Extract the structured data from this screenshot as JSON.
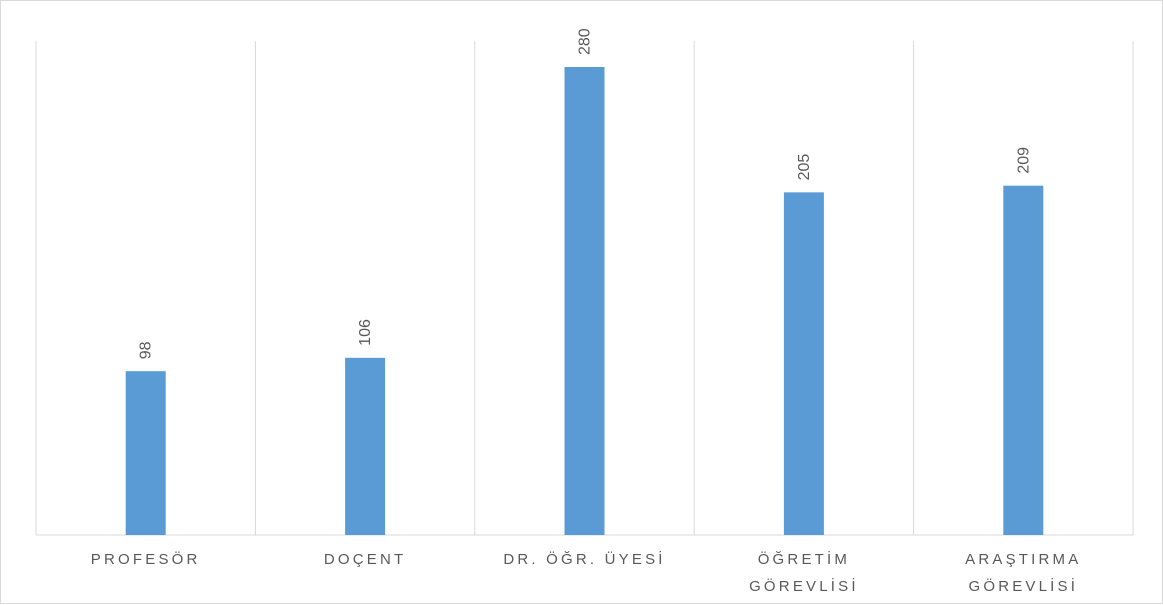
{
  "chart_data": {
    "type": "bar",
    "categories": [
      [
        "PROFESÖR"
      ],
      [
        "DOÇENT"
      ],
      [
        "DR. ÖĞR. ÜYESİ"
      ],
      [
        "ÖĞRETİM",
        "GÖREVLİSİ"
      ],
      [
        "ARAŞTIRMA",
        "GÖREVLİSİ"
      ]
    ],
    "values": [
      98,
      106,
      280,
      205,
      209
    ],
    "title": "",
    "xlabel": "",
    "ylabel": "",
    "ylim": [
      0,
      300
    ],
    "grid": "vertical-category-dividers",
    "legend": "none",
    "bar_color": "#5b9bd5",
    "grid_color": "#d9d9d9",
    "label_color": "#595959"
  }
}
